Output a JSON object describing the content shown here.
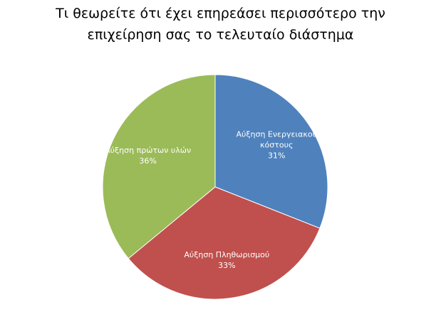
{
  "chart_data": {
    "type": "pie",
    "title": [
      "Τι θεωρείτε ότι έχει επηρεάσει περισσότερο την",
      "επιχείρηση σας το τελευταίο διάστημα"
    ],
    "categories": [
      "Αύξηση Ενεργειακού κόστους",
      "Αύξηση Πληθωρισμού",
      "Αύξηση πρώτων υλών"
    ],
    "values": [
      31,
      33,
      36
    ],
    "value_labels": [
      "31%",
      "33%",
      "36%"
    ],
    "colors": [
      "#4f81bd",
      "#c0504d",
      "#9bbb59"
    ]
  }
}
